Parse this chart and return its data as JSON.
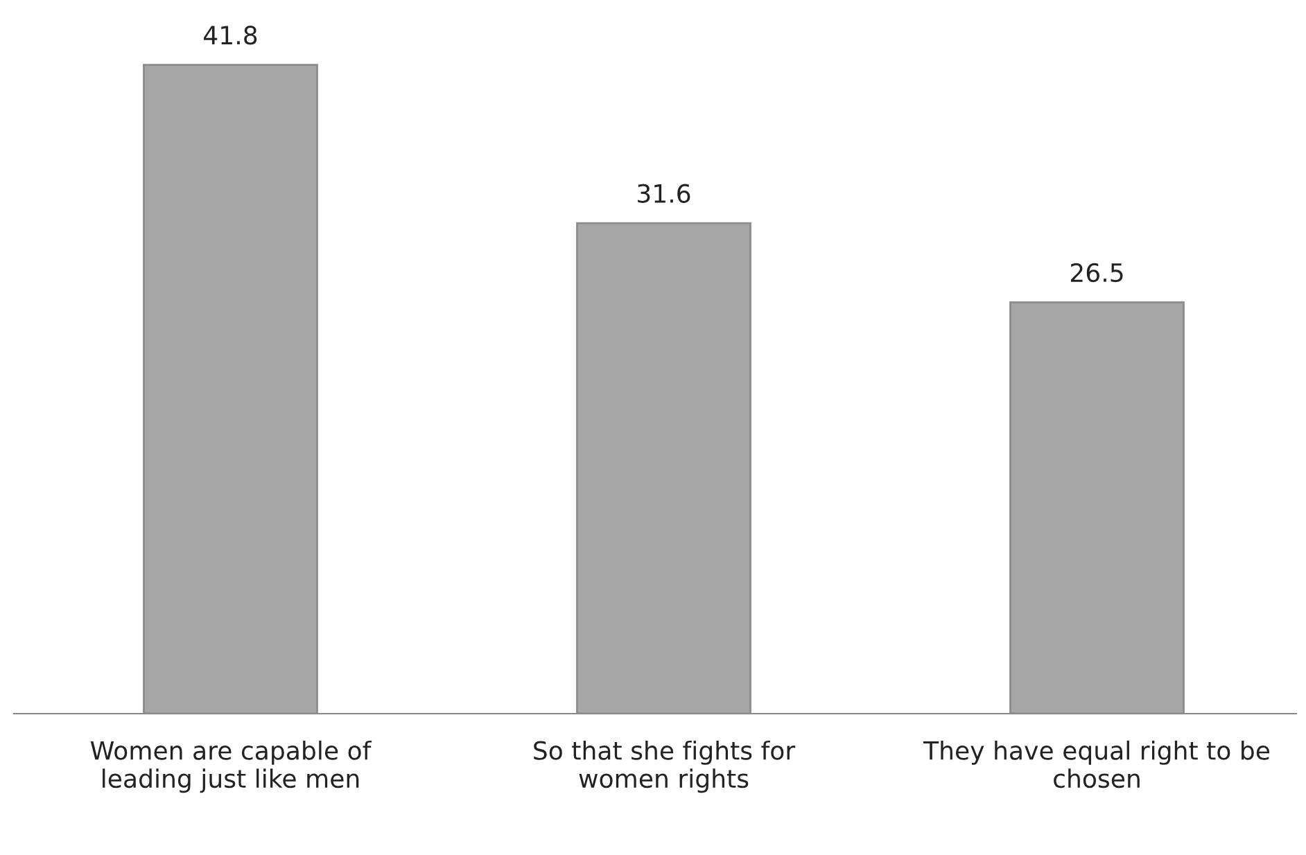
{
  "chart_data": {
    "type": "bar",
    "categories": [
      "Women are capable of\nleading just like men",
      "So that she fights for\nwomen rights",
      "They have equal right to be\nchosen"
    ],
    "values": [
      41.8,
      31.6,
      26.5
    ],
    "color": "#a6a6a6",
    "data_labels": true,
    "grid": false,
    "legend": false
  }
}
